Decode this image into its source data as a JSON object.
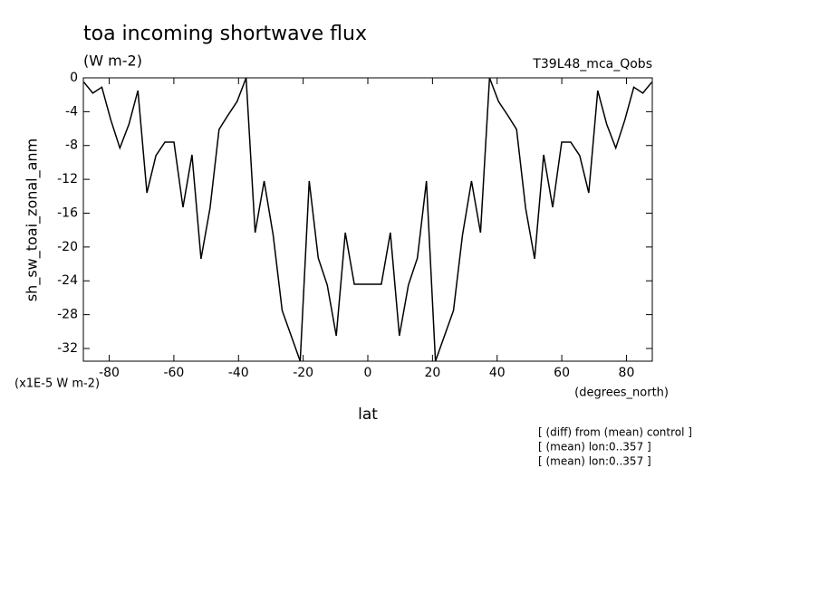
{
  "chart_data": {
    "type": "line",
    "title": "toa incoming shortwave flux",
    "subtitle": "(W m-2)",
    "run_label": "T39L48_mca_Qobs",
    "y_label": "sh_sw_toai_zonal_anm",
    "y_units": "(x1E-5 W m-2)",
    "x_units": "(degrees_north)",
    "x_label": "lat",
    "notes": [
      "[ (diff) from (mean) control ]",
      "[ (mean) lon:0..357 ]",
      "[ (mean) lon:0..357 ]"
    ],
    "color": "#000000",
    "x": [
      -87.86,
      -85.07,
      -82.28,
      -79.49,
      -76.7,
      -73.91,
      -71.12,
      -68.34,
      -65.55,
      -62.76,
      -59.97,
      -57.18,
      -54.39,
      -51.6,
      -48.81,
      -46.02,
      -43.23,
      -40.44,
      -37.65,
      -34.86,
      -32.07,
      -29.28,
      -26.5,
      -23.71,
      -20.92,
      -18.13,
      -15.34,
      -12.55,
      -9.76,
      -6.97,
      -4.18,
      -1.39,
      1.39,
      4.18,
      6.97,
      9.76,
      12.55,
      15.34,
      18.13,
      20.92,
      23.71,
      26.5,
      29.28,
      32.07,
      34.86,
      37.65,
      40.44,
      43.23,
      46.02,
      48.81,
      51.6,
      54.39,
      57.18,
      59.97,
      62.76,
      65.55,
      68.34,
      71.12,
      73.91,
      76.7,
      79.49,
      82.28,
      85.07,
      87.86
    ],
    "values": [
      -0.5,
      -1.8,
      -1.1,
      -5,
      -8.3,
      -5.5,
      -1.5,
      -13.6,
      -9.2,
      -7.6,
      -7.6,
      -15.3,
      -9.1,
      -21.4,
      -15.4,
      -6.1,
      -4.4,
      -2.8,
      0,
      -18.3,
      -12.2,
      -18.6,
      -27.5,
      -30.5,
      -33.5,
      -12.2,
      -21.3,
      -24.5,
      -30.5,
      -18.3,
      -24.4,
      -24.4,
      -24.4,
      -24.4,
      -18.3,
      -30.5,
      -24.5,
      -21.3,
      -12.2,
      -33.5,
      -30.5,
      -27.5,
      -18.6,
      -12.2,
      -18.3,
      0,
      -2.8,
      -4.4,
      -6.1,
      -15.4,
      -21.4,
      -9.1,
      -15.3,
      -7.6,
      -7.6,
      -9.2,
      -13.6,
      -1.5,
      -5.5,
      -8.3,
      -5,
      -1.1,
      -1.8,
      -0.5
    ],
    "xlim": [
      -88,
      88
    ],
    "ylim": [
      -33.5,
      0
    ],
    "xticks": [
      -80,
      -60,
      -40,
      -20,
      0,
      20,
      40,
      60,
      80
    ],
    "yticks": [
      0,
      -4,
      -8,
      -12,
      -16,
      -20,
      -24,
      -28,
      -32
    ]
  }
}
